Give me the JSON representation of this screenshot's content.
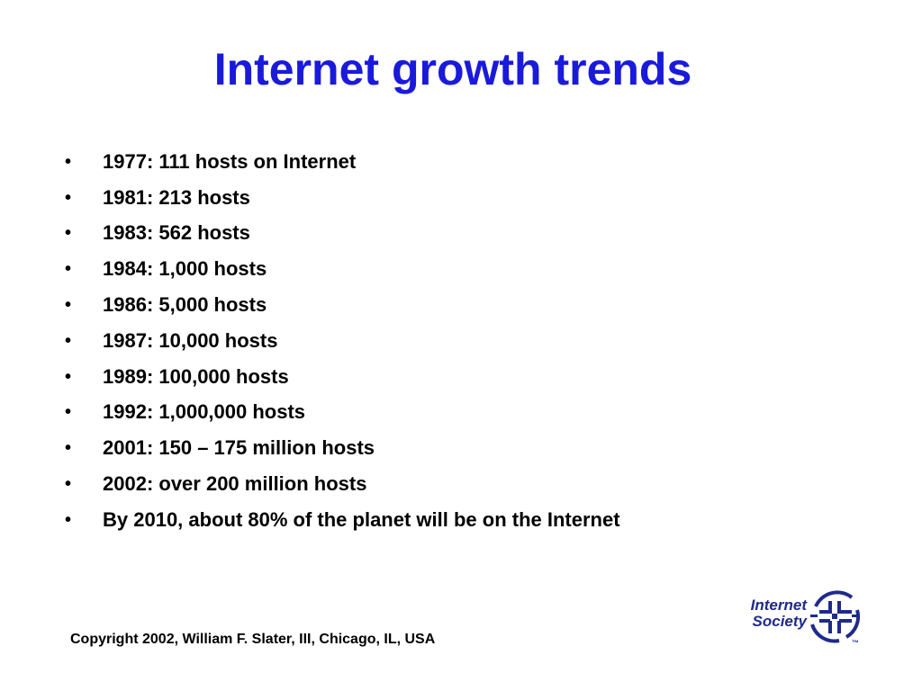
{
  "title": "Internet growth trends",
  "bullets": [
    "1977: 111 hosts on Internet",
    "1981: 213 hosts",
    "1983: 562 hosts",
    "1984: 1,000 hosts",
    "1986: 5,000 hosts",
    "1987: 10,000 hosts",
    "1989: 100,000 hosts",
    "1992: 1,000,000 hosts",
    "2001: 150 – 175 million hosts",
    "2002: over 200 million hosts",
    "By 2010, about 80% of the planet will be on the Internet"
  ],
  "bullet_glyph": "•",
  "copyright": "Copyright 2002, William F. Slater, III, Chicago, IL, USA",
  "logo": {
    "line1": "Internet",
    "line2": "Society",
    "tm": "™",
    "icon": "internet-society-globe-icon"
  },
  "colors": {
    "title": "#1a1adb",
    "text": "#000000",
    "logo": "#1e2b8a"
  }
}
